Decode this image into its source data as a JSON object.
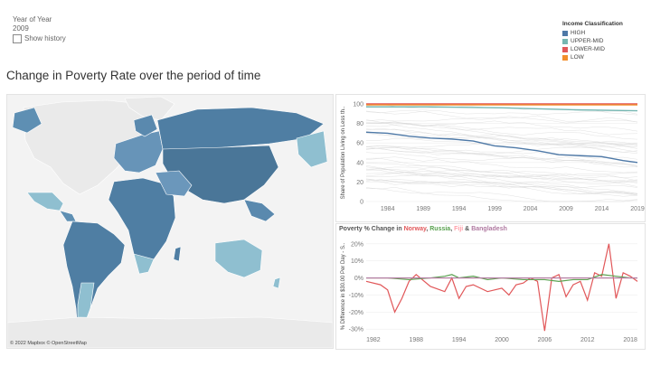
{
  "filter": {
    "label": "Year of Year",
    "value": "2009",
    "checkbox_label": "Show history"
  },
  "legend": {
    "title": "Income Classification",
    "items": [
      {
        "label": "HIGH",
        "color": "#4e79a7"
      },
      {
        "label": "UPPER-MID",
        "color": "#76b7b2"
      },
      {
        "label": "LOWER-MID",
        "color": "#e15759"
      },
      {
        "label": "LOW",
        "color": "#f28e2b"
      }
    ]
  },
  "main_title": "Change in Poverty Rate over the period of time",
  "map": {
    "attribution": "© 2022 Mapbox © OpenStreetMap"
  },
  "chart_data": [
    {
      "type": "line",
      "ylabel": "Share of Population Living on Less th..",
      "ylim": [
        0,
        100
      ],
      "yticks": [
        0,
        20,
        40,
        60,
        80,
        100
      ],
      "xticks": [
        1984,
        1989,
        1994,
        1999,
        2004,
        2009,
        2014,
        2019
      ],
      "xlim": [
        1981,
        2019
      ],
      "series": [
        {
          "color": "#4e79a7",
          "x": [
            1981,
            1984,
            1987,
            1990,
            1993,
            1996,
            1999,
            2002,
            2005,
            2008,
            2011,
            2014,
            2017,
            2019
          ],
          "y": [
            71,
            70,
            67,
            65,
            64,
            62,
            57,
            55,
            52,
            48,
            47,
            46,
            42,
            40
          ]
        },
        {
          "color": "#e15759",
          "x": [
            1981,
            2019
          ],
          "y": [
            100,
            100
          ]
        },
        {
          "color": "#f28e2b",
          "x": [
            1981,
            2019
          ],
          "y": [
            99,
            99
          ]
        },
        {
          "color": "#76b7b2",
          "x": [
            1981,
            1990,
            2000,
            2010,
            2019
          ],
          "y": [
            97,
            97,
            96,
            94,
            93
          ]
        }
      ]
    },
    {
      "type": "line",
      "title_parts": [
        {
          "text": "Poverty % Change in ",
          "color": "#555555"
        },
        {
          "text": "Norway",
          "color": "#e15759"
        },
        {
          "text": ", ",
          "color": "#555555"
        },
        {
          "text": "Russia",
          "color": "#59a14f"
        },
        {
          "text": ", ",
          "color": "#555555"
        },
        {
          "text": "Fiji",
          "color": "#ff9da7"
        },
        {
          "text": " & ",
          "color": "#555555"
        },
        {
          "text": "Bangladesh",
          "color": "#b07aa1"
        }
      ],
      "ylabel": "% Difference in $30.00 Per Day - S..",
      "ylim": [
        -32,
        22
      ],
      "yticks": [
        -30,
        -20,
        -10,
        0,
        10,
        20
      ],
      "ytick_labels": [
        "-30%",
        "-20%",
        "-10%",
        "0%",
        "10%",
        "20%"
      ],
      "xticks": [
        1982,
        1988,
        1994,
        2000,
        2006,
        2012,
        2018
      ],
      "xlim": [
        1981,
        2019
      ],
      "series": [
        {
          "name": "Norway",
          "color": "#e15759",
          "x": [
            1981,
            1983,
            1984,
            1985,
            1986,
            1987,
            1988,
            1990,
            1992,
            1993,
            1994,
            1995,
            1996,
            1998,
            2000,
            2001,
            2002,
            2003,
            2004,
            2005,
            2006,
            2007,
            2008,
            2009,
            2010,
            2011,
            2012,
            2013,
            2014,
            2015,
            2016,
            2017,
            2018,
            2019
          ],
          "y": [
            -2,
            -4,
            -7,
            -20,
            -12,
            -2,
            2,
            -5,
            -8,
            0,
            -12,
            -5,
            -4,
            -8,
            -6,
            -10,
            -4,
            -3,
            0,
            -2,
            -31,
            0,
            2,
            -11,
            -4,
            -2,
            -13,
            3,
            1,
            20,
            -12,
            3,
            1,
            -2
          ]
        },
        {
          "name": "Russia",
          "color": "#59a14f",
          "x": [
            1981,
            1984,
            1987,
            1990,
            1992,
            1993,
            1994,
            1996,
            1998,
            2000,
            2003,
            2006,
            2008,
            2010,
            2012,
            2014,
            2016,
            2018,
            2019
          ],
          "y": [
            0,
            0,
            -1,
            0,
            1,
            2,
            0,
            1,
            -1,
            0,
            -1,
            -1,
            -2,
            -1,
            -1,
            2,
            1,
            0,
            0
          ]
        },
        {
          "name": "Fiji",
          "color": "#ff9da7",
          "x": [
            1981,
            2019
          ],
          "y": [
            0,
            0
          ]
        },
        {
          "name": "Bangladesh",
          "color": "#b07aa1",
          "x": [
            1981,
            2019
          ],
          "y": [
            0,
            0
          ]
        }
      ]
    }
  ]
}
